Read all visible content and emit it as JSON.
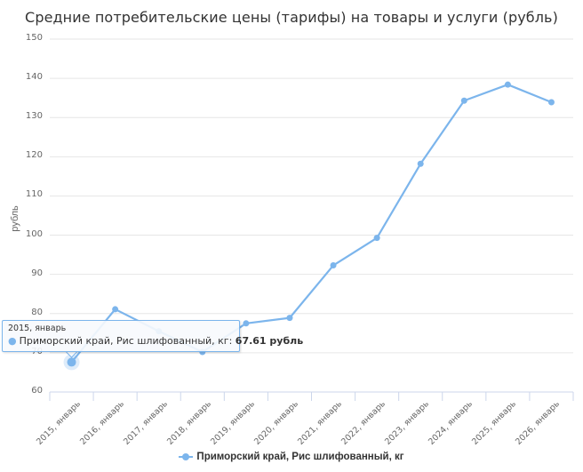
{
  "chart_data": {
    "type": "line",
    "title": "Средние потребительские цены (тарифы) на товары и услуги (рубль)",
    "xlabel": "",
    "ylabel": "рубль",
    "ylim": [
      60,
      150
    ],
    "yticks": [
      60,
      70,
      80,
      90,
      100,
      110,
      120,
      130,
      140,
      150
    ],
    "grid": true,
    "legend_position": "bottom-center",
    "categories": [
      "2015, январь",
      "2016, январь",
      "2017, январь",
      "2018, январь",
      "2019, январь",
      "2020, январь",
      "2021, январь",
      "2022, январь",
      "2023, январь",
      "2024, январь",
      "2025, январь",
      "2026, январь"
    ],
    "series": [
      {
        "name": "Приморский край, Рис шлифованный, кг",
        "color": "#7cb5ec",
        "values": [
          67.61,
          81.1,
          75.5,
          70.2,
          77.5,
          78.9,
          92.3,
          99.3,
          118.2,
          134.3,
          138.4,
          133.9
        ]
      }
    ]
  },
  "tooltip": {
    "header": "2015, январь",
    "series_label": "Приморский край, Рис шлифованный, кг: ",
    "value": "67.61 рубль"
  },
  "legend": {
    "label": "Приморский край, Рис шлифованный, кг"
  }
}
